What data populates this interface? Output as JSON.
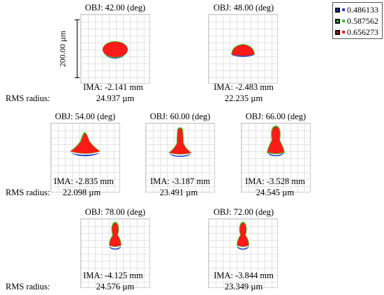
{
  "scale_label": "200.00 µm",
  "legend": {
    "items": [
      {
        "label": "0.486133",
        "color": "#1f3fd0"
      },
      {
        "label": "0.587562",
        "color": "#2ecc1f"
      },
      {
        "label": "0.656273",
        "color": "#ff1a1a"
      }
    ]
  },
  "rows": [
    {
      "rms_label": "RMS radius:"
    },
    {
      "rms_label": "RMS radius:"
    },
    {
      "rms_label": "RMS radius:"
    }
  ],
  "plots": [
    {
      "obj": "OBJ: 42.00 (deg)",
      "ima": "IMA: -2.141 mm",
      "rms": "24.937 µm",
      "shape": "ellipse"
    },
    {
      "obj": "OBJ: 48.00 (deg)",
      "ima": "IMA: -2.483 mm",
      "rms": "22.235 µm",
      "shape": "dome"
    },
    {
      "obj": "OBJ: 54.00 (deg)",
      "ima": "IMA: -2.835 mm",
      "rms": "22.098 µm",
      "shape": "fin"
    },
    {
      "obj": "OBJ: 60.00 (deg)",
      "ima": "IMA: -3.187 mm",
      "rms": "23.491 µm",
      "shape": "flask"
    },
    {
      "obj": "OBJ: 66.00 (deg)",
      "ima": "IMA: -3.528 mm",
      "rms": "24.545 µm",
      "shape": "flask-tall"
    },
    {
      "obj": "OBJ: 78.00 (deg)",
      "ima": "IMA: -4.125 mm",
      "rms": "24.576 µm",
      "shape": "drop"
    },
    {
      "obj": "OBJ: 72.00 (deg)",
      "ima": "IMA: -3.844 mm",
      "rms": "23.349 µm",
      "shape": "drop"
    }
  ]
}
